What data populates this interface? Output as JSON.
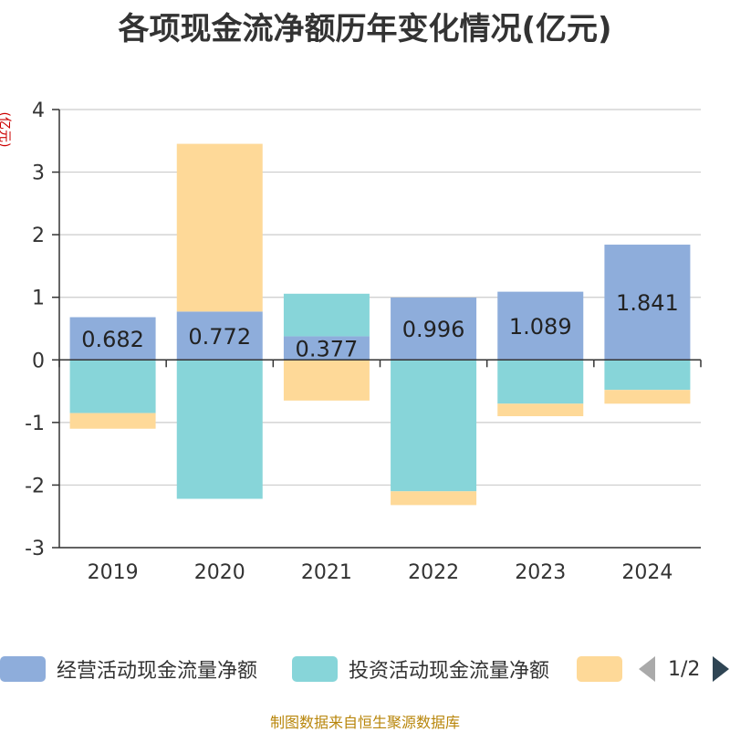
{
  "chart_data": {
    "type": "bar",
    "stacked": true,
    "title": "各项现金流净额历年变化情况(亿元)",
    "ylabel": "(亿元)",
    "categories": [
      "2019",
      "2020",
      "2021",
      "2022",
      "2023",
      "2024"
    ],
    "ylim": [
      -3,
      4
    ],
    "yticks": [
      -3,
      -2,
      -1,
      0,
      1,
      2,
      3,
      4
    ],
    "grid": true,
    "series": [
      {
        "name": "经营活动现金流量净额",
        "color": "#8eaddb",
        "values": [
          0.682,
          0.772,
          0.377,
          0.996,
          1.089,
          1.841
        ],
        "labels": [
          "0.682",
          "0.772",
          "0.377",
          "0.996",
          "1.089",
          "1.841"
        ]
      },
      {
        "name": "投资活动现金流量净额",
        "color": "#87d5d9",
        "values": [
          -0.85,
          -2.22,
          0.68,
          -2.1,
          -0.7,
          -0.48
        ]
      },
      {
        "name": "",
        "color": "#fed998",
        "values": [
          -0.25,
          2.68,
          -0.65,
          -0.22,
          -0.2,
          -0.22
        ]
      }
    ]
  },
  "legend": {
    "items": [
      {
        "label": "经营活动现金流量净额",
        "color": "#8eaddb"
      },
      {
        "label": "投资活动现金流量净额",
        "color": "#87d5d9"
      },
      {
        "label": "",
        "color": "#fed998"
      }
    ],
    "pager": "1/2"
  },
  "footer": "制图数据来自恒生聚源数据库"
}
